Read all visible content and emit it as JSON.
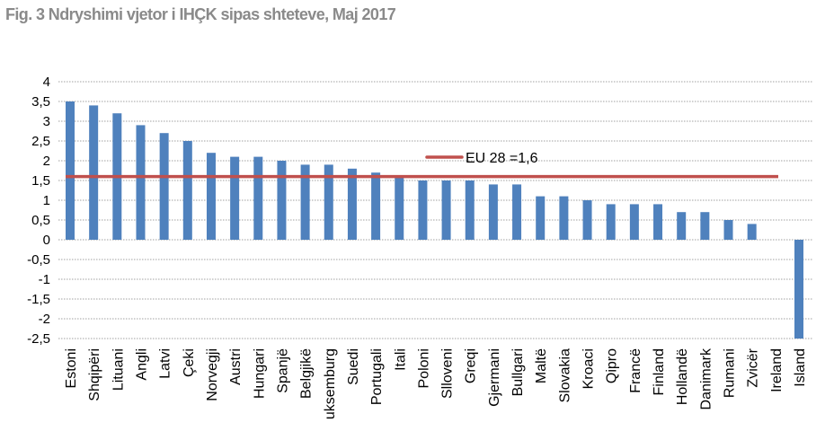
{
  "chart_data": {
    "type": "bar",
    "title": "Fig. 3 Ndryshimi vjetor i IHÇK sipas shteteve, Maj 2017",
    "xlabel": "",
    "ylabel": "",
    "ylim": [
      -2.5,
      4
    ],
    "yticks": [
      "4",
      "3,5",
      "3",
      "2,5",
      "2",
      "1,5",
      "1",
      "0,5",
      "0",
      "-0,5",
      "-1",
      "-1,5",
      "-2",
      "-2,5"
    ],
    "ytick_values": [
      4,
      3.5,
      3,
      2.5,
      2,
      1.5,
      1,
      0.5,
      0,
      -0.5,
      -1,
      -1.5,
      -2,
      -2.5
    ],
    "grid": true,
    "legend_position": "top-center",
    "categories": [
      "Estoni",
      "Shqipëri",
      "Lituani",
      "Angli",
      "Latvi",
      "Çeki",
      "Norvegji",
      "Austri",
      "Hungari",
      "Spanjë",
      "Belgjikë",
      "uksemburg",
      "Suedi",
      "Portugali",
      "Itali",
      "Poloni",
      "Slloveni",
      "Greqi",
      "Gjermani",
      "Bullgari",
      "Maltë",
      "Slovakia",
      "Kroaci",
      "Qipro",
      "Francë",
      "Finland",
      "Hollandë",
      "Danimark",
      "Rumani",
      "Zvicër",
      "Ireland",
      "Island"
    ],
    "values": [
      3.5,
      3.4,
      3.2,
      2.9,
      2.7,
      2.5,
      2.2,
      2.1,
      2.1,
      2.0,
      1.9,
      1.9,
      1.8,
      1.7,
      1.6,
      1.5,
      1.5,
      1.5,
      1.4,
      1.4,
      1.1,
      1.1,
      1.0,
      0.9,
      0.9,
      0.9,
      0.7,
      0.7,
      0.5,
      0.4,
      0,
      -2.5
    ],
    "reference_line": {
      "name": "EU 28 =1,6",
      "value": 1.6
    },
    "colors": {
      "bar": "#4f81bd",
      "reference_line": "#c0504d",
      "title": "#8a8a8a",
      "grid": "#a0a0a0"
    }
  }
}
